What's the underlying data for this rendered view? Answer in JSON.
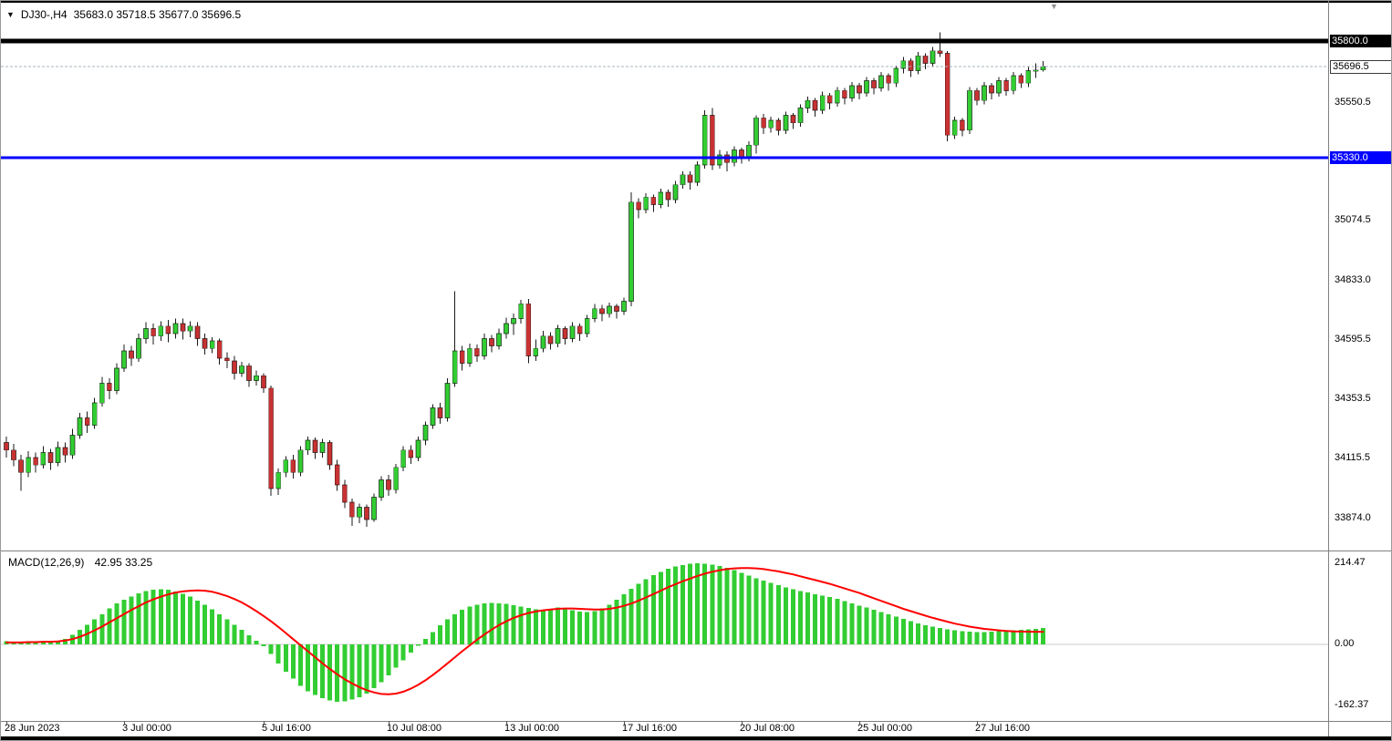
{
  "header": {
    "symbol_period": "DJ30-,H4",
    "ohlc_values": "35683.0 35718.5 35677.0 35696.5"
  },
  "macd_header": {
    "title": "MACD(12,26,9)",
    "values": "42.95 33.25"
  },
  "icons": {
    "symbol_dropdown": "▼",
    "scroll_marker": "▼"
  },
  "colors": {
    "bull": "#32cd32",
    "bear": "#c83232",
    "wick": "#1a1a1a",
    "body_outline": "rgba(0,0,0,0.6)",
    "histogram": "#32cd32",
    "signal": "#ff0000",
    "hline_black": "#000000",
    "hline_blue": "#0000ff",
    "current_line": "#aab4be",
    "zero_line": "#c8c8c8",
    "separator": "#808080"
  },
  "chart_data": [
    {
      "type": "candlestick",
      "symbol": "DJ30-",
      "timeframe": "H4",
      "last_ohlc": {
        "open": 35683.0,
        "high": 35718.5,
        "low": 35677.0,
        "close": 35696.5
      },
      "y_tick_labels": [
        {
          "text": "35550.5",
          "price": 35550.5
        },
        {
          "text": "35074.5",
          "price": 35074.5
        },
        {
          "text": "34833.0",
          "price": 34833.0
        },
        {
          "text": "34595.5",
          "price": 34595.5
        },
        {
          "text": "34353.5",
          "price": 34353.5
        },
        {
          "text": "34115.5",
          "price": 34115.5
        },
        {
          "text": "33874.0",
          "price": 33874.0
        }
      ],
      "x_tick_labels": [
        {
          "index": 0,
          "text": "28 Jun 2023"
        },
        {
          "index": 16,
          "text": "3 Jul 00:00"
        },
        {
          "index": 35,
          "text": "5 Jul 16:00"
        },
        {
          "index": 52,
          "text": "10 Jul 08:00"
        },
        {
          "index": 68,
          "text": "13 Jul 00:00"
        },
        {
          "index": 84,
          "text": "17 Jul 16:00"
        },
        {
          "index": 100,
          "text": "20 Jul 08:00"
        },
        {
          "index": 116,
          "text": "25 Jul 00:00"
        },
        {
          "index": 132,
          "text": "27 Jul 16:00"
        }
      ],
      "hlines": [
        {
          "price": 35800.0,
          "label": "35800.0",
          "color": "#000000",
          "thickness": 5
        },
        {
          "price": 35330.0,
          "label": "35330.0",
          "color": "#0000ff",
          "thickness": 3
        }
      ],
      "current_price": {
        "value": 35696.5,
        "label": "35696.5"
      },
      "candles": [
        [
          34180,
          34205,
          34120,
          34150
        ],
        [
          34150,
          34175,
          34085,
          34110
        ],
        [
          34110,
          34130,
          33985,
          34060
        ],
        [
          34060,
          34145,
          34040,
          34120
        ],
        [
          34120,
          34140,
          34060,
          34090
        ],
        [
          34090,
          34165,
          34075,
          34140
        ],
        [
          34140,
          34155,
          34070,
          34100
        ],
        [
          34100,
          34185,
          34085,
          34160
        ],
        [
          34160,
          34180,
          34100,
          34130
        ],
        [
          34130,
          34235,
          34115,
          34210
        ],
        [
          34210,
          34300,
          34195,
          34280
        ],
        [
          34280,
          34305,
          34220,
          34250
        ],
        [
          34250,
          34360,
          34235,
          34340
        ],
        [
          34340,
          34445,
          34325,
          34420
        ],
        [
          34420,
          34440,
          34355,
          34390
        ],
        [
          34390,
          34500,
          34375,
          34480
        ],
        [
          34480,
          34575,
          34465,
          34550
        ],
        [
          34550,
          34570,
          34490,
          34520
        ],
        [
          34520,
          34620,
          34505,
          34600
        ],
        [
          34600,
          34665,
          34580,
          34640
        ],
        [
          34640,
          34660,
          34575,
          34610
        ],
        [
          34610,
          34670,
          34590,
          34650
        ],
        [
          34650,
          34675,
          34585,
          34620
        ],
        [
          34620,
          34680,
          34600,
          34660
        ],
        [
          34660,
          34680,
          34595,
          34630
        ],
        [
          34630,
          34670,
          34605,
          34650
        ],
        [
          34650,
          34665,
          34570,
          34600
        ],
        [
          34600,
          34620,
          34535,
          34560
        ],
        [
          34560,
          34605,
          34540,
          34590
        ],
        [
          34590,
          34600,
          34495,
          34520
        ],
        [
          34520,
          34545,
          34480,
          34510
        ],
        [
          34510,
          34530,
          34435,
          34460
        ],
        [
          34460,
          34505,
          34445,
          34490
        ],
        [
          34490,
          34500,
          34405,
          34430
        ],
        [
          34430,
          34470,
          34410,
          34450
        ],
        [
          34450,
          34460,
          34380,
          34400
        ],
        [
          34400,
          34410,
          33965,
          33995
        ],
        [
          33995,
          34075,
          33970,
          34060
        ],
        [
          34060,
          34125,
          34040,
          34110
        ],
        [
          34110,
          34130,
          34035,
          34060
        ],
        [
          34060,
          34165,
          34045,
          34150
        ],
        [
          34150,
          34205,
          34130,
          34190
        ],
        [
          34190,
          34200,
          34115,
          34140
        ],
        [
          34140,
          34195,
          34120,
          34180
        ],
        [
          34180,
          34190,
          34070,
          34090
        ],
        [
          34090,
          34110,
          33985,
          34010
        ],
        [
          34010,
          34030,
          33915,
          33940
        ],
        [
          33940,
          33955,
          33845,
          33880
        ],
        [
          33880,
          33935,
          33855,
          33920
        ],
        [
          33920,
          33930,
          33840,
          33870
        ],
        [
          33870,
          33975,
          33860,
          33960
        ],
        [
          33960,
          34045,
          33945,
          34030
        ],
        [
          34030,
          34050,
          33965,
          33990
        ],
        [
          33990,
          34095,
          33975,
          34080
        ],
        [
          34080,
          34165,
          34065,
          34150
        ],
        [
          34150,
          34170,
          34095,
          34120
        ],
        [
          34120,
          34205,
          34105,
          34190
        ],
        [
          34190,
          34265,
          34170,
          34250
        ],
        [
          34250,
          34335,
          34235,
          34320
        ],
        [
          34320,
          34340,
          34255,
          34280
        ],
        [
          34280,
          34440,
          34265,
          34420
        ],
        [
          34420,
          34790,
          34405,
          34550
        ],
        [
          34550,
          34570,
          34470,
          34500
        ],
        [
          34500,
          34580,
          34485,
          34560
        ],
        [
          34560,
          34575,
          34505,
          34530
        ],
        [
          34530,
          34620,
          34515,
          34600
        ],
        [
          34600,
          34615,
          34545,
          34570
        ],
        [
          34570,
          34640,
          34555,
          34620
        ],
        [
          34620,
          34685,
          34600,
          34660
        ],
        [
          34660,
          34700,
          34615,
          34680
        ],
        [
          34680,
          34755,
          34660,
          34740
        ],
        [
          34740,
          34760,
          34500,
          34530
        ],
        [
          34530,
          34595,
          34510,
          34560
        ],
        [
          34560,
          34630,
          34545,
          34610
        ],
        [
          34610,
          34625,
          34555,
          34580
        ],
        [
          34580,
          34655,
          34565,
          34640
        ],
        [
          34640,
          34650,
          34575,
          34600
        ],
        [
          34600,
          34665,
          34585,
          34650
        ],
        [
          34650,
          34660,
          34590,
          34620
        ],
        [
          34620,
          34695,
          34605,
          34680
        ],
        [
          34680,
          34740,
          34665,
          34720
        ],
        [
          34720,
          34735,
          34670,
          34700
        ],
        [
          34700,
          34745,
          34685,
          34730
        ],
        [
          34730,
          34740,
          34680,
          34710
        ],
        [
          34710,
          34765,
          34695,
          34750
        ],
        [
          34750,
          35190,
          34730,
          35150
        ],
        [
          35150,
          35165,
          35085,
          35120
        ],
        [
          35120,
          35185,
          35105,
          35170
        ],
        [
          35170,
          35180,
          35110,
          35140
        ],
        [
          35140,
          35205,
          35125,
          35190
        ],
        [
          35190,
          35200,
          35130,
          35160
        ],
        [
          35160,
          35235,
          35145,
          35220
        ],
        [
          35220,
          35275,
          35205,
          35260
        ],
        [
          35260,
          35275,
          35200,
          35230
        ],
        [
          35230,
          35315,
          35215,
          35300
        ],
        [
          35300,
          35520,
          35285,
          35500
        ],
        [
          35500,
          35530,
          35280,
          35300
        ],
        [
          35300,
          35360,
          35285,
          35340
        ],
        [
          35340,
          35355,
          35275,
          35310
        ],
        [
          35310,
          35375,
          35295,
          35360
        ],
        [
          35360,
          35370,
          35305,
          35330
        ],
        [
          35330,
          35395,
          35315,
          35380
        ],
        [
          35380,
          35500,
          35345,
          35490
        ],
        [
          35490,
          35505,
          35425,
          35450
        ],
        [
          35450,
          35495,
          35430,
          35480
        ],
        [
          35480,
          35490,
          35420,
          35440
        ],
        [
          35440,
          35515,
          35425,
          35500
        ],
        [
          35500,
          35510,
          35445,
          35470
        ],
        [
          35470,
          35545,
          35455,
          35530
        ],
        [
          35530,
          35575,
          35510,
          35560
        ],
        [
          35560,
          35570,
          35495,
          35520
        ],
        [
          35520,
          35595,
          35505,
          35580
        ],
        [
          35580,
          35590,
          35525,
          35550
        ],
        [
          35550,
          35615,
          35535,
          35600
        ],
        [
          35600,
          35610,
          35545,
          35570
        ],
        [
          35570,
          35635,
          35555,
          35620
        ],
        [
          35620,
          35630,
          35565,
          35590
        ],
        [
          35590,
          35655,
          35575,
          35640
        ],
        [
          35640,
          35650,
          35585,
          35610
        ],
        [
          35610,
          35675,
          35595,
          35660
        ],
        [
          35660,
          35670,
          35600,
          35630
        ],
        [
          35630,
          35700,
          35615,
          35690
        ],
        [
          35690,
          35735,
          35670,
          35720
        ],
        [
          35720,
          35730,
          35655,
          35680
        ],
        [
          35680,
          35755,
          35665,
          35740
        ],
        [
          35740,
          35750,
          35685,
          35710
        ],
        [
          35710,
          35775,
          35695,
          35760
        ],
        [
          35760,
          35835,
          35735,
          35750
        ],
        [
          35750,
          35760,
          35395,
          35420
        ],
        [
          35420,
          35495,
          35405,
          35480
        ],
        [
          35480,
          35490,
          35415,
          35440
        ],
        [
          35440,
          35615,
          35425,
          35600
        ],
        [
          35600,
          35610,
          35540,
          35560
        ],
        [
          35560,
          35635,
          35545,
          35620
        ],
        [
          35620,
          35630,
          35565,
          35590
        ],
        [
          35590,
          35655,
          35575,
          35640
        ],
        [
          35640,
          35650,
          35580,
          35600
        ],
        [
          35600,
          35675,
          35585,
          35660
        ],
        [
          35660,
          35670,
          35610,
          35630
        ],
        [
          35630,
          35695,
          35615,
          35680
        ],
        [
          35680,
          35710,
          35650,
          35683
        ],
        [
          35683,
          35718.5,
          35677,
          35696.5
        ]
      ]
    },
    {
      "type": "macd",
      "label": "MACD(12,26,9)",
      "macd_value": 42.95,
      "signal_value": 33.25,
      "y_tick_labels": [
        {
          "text": "214.47",
          "value": 214.47
        },
        {
          "text": "0.00",
          "value": 0
        },
        {
          "text": "-162.37",
          "value": -162.37
        }
      ],
      "histogram": [
        8,
        6,
        4,
        7,
        5,
        9,
        7,
        10,
        15,
        25,
        38,
        52,
        66,
        80,
        95,
        108,
        118,
        127,
        135,
        141,
        145,
        146,
        144,
        140,
        134,
        126,
        116,
        105,
        93,
        80,
        66,
        52,
        38,
        24,
        10,
        -5,
        -25,
        -50,
        -72,
        -90,
        -110,
        -124,
        -134,
        -142,
        -148,
        -152,
        -150,
        -146,
        -140,
        -130,
        -116,
        -100,
        -82,
        -62,
        -42,
        -22,
        -4,
        14,
        32,
        50,
        66,
        80,
        92,
        100,
        105,
        108,
        110,
        109,
        107,
        104,
        100,
        96,
        93,
        92,
        94,
        97,
        94,
        90,
        87,
        86,
        88,
        95,
        105,
        118,
        132,
        147,
        160,
        172,
        183,
        192,
        200,
        206,
        210,
        213,
        214,
        213,
        211,
        207,
        202,
        196,
        189,
        182,
        175,
        169,
        163,
        157,
        151,
        146,
        141,
        137,
        133,
        129,
        125,
        120,
        115,
        109,
        103,
        97,
        91,
        85,
        79,
        73,
        67,
        61,
        56,
        51,
        47,
        43,
        40,
        37,
        35,
        34,
        33,
        33,
        34,
        35,
        36,
        37,
        39,
        40,
        41,
        42.95
      ],
      "signal": [
        5,
        5,
        5,
        6,
        6,
        7,
        7,
        8,
        10,
        14,
        20,
        28,
        37,
        47,
        58,
        69,
        80,
        91,
        101,
        111,
        119,
        126,
        132,
        137,
        140,
        142,
        143,
        142,
        139,
        134,
        128,
        120,
        111,
        100,
        88,
        75,
        61,
        46,
        30,
        14,
        -2,
        -18,
        -34,
        -50,
        -65,
        -79,
        -92,
        -103,
        -113,
        -121,
        -127,
        -131,
        -132,
        -130,
        -125,
        -117,
        -107,
        -95,
        -81,
        -66,
        -50,
        -34,
        -18,
        -3,
        12,
        26,
        39,
        51,
        61,
        70,
        77,
        83,
        87,
        90,
        92,
        94,
        95,
        95,
        94,
        93,
        92,
        92,
        94,
        97,
        102,
        108,
        116,
        124,
        133,
        142,
        151,
        159,
        167,
        174,
        181,
        187,
        192,
        196,
        199,
        201,
        202,
        202,
        201,
        199,
        196,
        193,
        189,
        185,
        180,
        175,
        170,
        165,
        160,
        154,
        148,
        142,
        136,
        129,
        122,
        115,
        108,
        101,
        94,
        88,
        82,
        76,
        70,
        65,
        60,
        55,
        51,
        47,
        44,
        41,
        39,
        37,
        35.5,
        34.5,
        34,
        33.6,
        33.4,
        33.25
      ]
    }
  ]
}
